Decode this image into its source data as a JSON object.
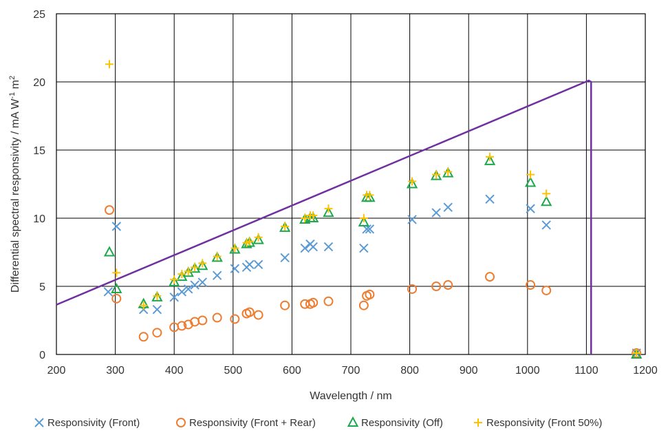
{
  "chart_data": {
    "type": "scatter",
    "xlabel": "Wavelength / nm",
    "ylabel_main": "Differential spectral responsivity / mA W",
    "ylabel_sup1": "-1",
    "ylabel_mid": " m",
    "ylabel_sup2": "2",
    "xlim": [
      200,
      1200
    ],
    "ylim": [
      0,
      25
    ],
    "xticks": [
      200,
      300,
      400,
      500,
      600,
      700,
      800,
      900,
      1000,
      1100,
      1200
    ],
    "yticks": [
      0,
      5,
      10,
      15,
      20,
      25
    ],
    "grid": true,
    "legend_placement": "bottom",
    "series": [
      {
        "name": "Responsivity (Front)",
        "marker": "x",
        "color": "#5b9bd5",
        "x": [
          288,
          302,
          348,
          371,
          400,
          413,
          424,
          435,
          448,
          473,
          503,
          523,
          528,
          543,
          588,
          622,
          631,
          636,
          662,
          722,
          727,
          732,
          804,
          845,
          865,
          936,
          1005,
          1032,
          1185
        ],
        "y": [
          4.6,
          9.4,
          3.3,
          3.3,
          4.2,
          4.6,
          4.8,
          5.1,
          5.3,
          5.8,
          6.3,
          6.4,
          6.6,
          6.6,
          7.1,
          7.8,
          8.1,
          7.9,
          7.9,
          7.8,
          9.2,
          9.2,
          9.9,
          10.4,
          10.8,
          11.4,
          10.7,
          9.5,
          0.1
        ]
      },
      {
        "name": "Responsivity (Front + Rear)",
        "marker": "circle",
        "color": "#ed7d31",
        "x": [
          290,
          302,
          348,
          371,
          400,
          413,
          424,
          435,
          448,
          473,
          503,
          523,
          528,
          543,
          588,
          622,
          631,
          636,
          662,
          722,
          727,
          732,
          804,
          845,
          865,
          936,
          1005,
          1032,
          1185
        ],
        "y": [
          10.6,
          4.1,
          1.3,
          1.6,
          2.0,
          2.1,
          2.2,
          2.4,
          2.5,
          2.7,
          2.6,
          3.0,
          3.1,
          2.9,
          3.6,
          3.7,
          3.7,
          3.8,
          3.9,
          3.6,
          4.3,
          4.4,
          4.8,
          5.0,
          5.1,
          5.7,
          5.1,
          4.7,
          0.1
        ]
      },
      {
        "name": "Responsivity (Off)",
        "marker": "triangle",
        "color": "#1ea84e",
        "x": [
          290,
          302,
          348,
          371,
          400,
          413,
          424,
          435,
          448,
          473,
          503,
          523,
          528,
          543,
          588,
          622,
          631,
          636,
          662,
          722,
          727,
          732,
          804,
          845,
          865,
          936,
          1005,
          1032,
          1185
        ],
        "y": [
          7.5,
          4.8,
          3.7,
          4.2,
          5.3,
          5.7,
          6.0,
          6.3,
          6.5,
          7.1,
          7.7,
          8.1,
          8.2,
          8.4,
          9.3,
          9.9,
          10.0,
          10.0,
          10.4,
          9.7,
          11.5,
          11.5,
          12.5,
          13.1,
          13.3,
          14.2,
          12.6,
          11.2,
          0.0
        ]
      },
      {
        "name": "Responsivity (Front 50%)",
        "marker": "plus",
        "color": "#ffc000",
        "x": [
          290,
          302,
          348,
          371,
          400,
          413,
          424,
          435,
          448,
          473,
          503,
          523,
          528,
          543,
          588,
          622,
          631,
          636,
          662,
          722,
          727,
          732,
          804,
          845,
          865,
          936,
          1005,
          1032,
          1185
        ],
        "y": [
          21.3,
          6.0,
          3.6,
          4.3,
          5.5,
          5.9,
          6.1,
          6.4,
          6.7,
          7.2,
          7.8,
          8.2,
          8.3,
          8.6,
          9.4,
          10.0,
          10.2,
          10.2,
          10.7,
          10.0,
          11.7,
          11.7,
          12.7,
          13.2,
          13.4,
          14.5,
          13.2,
          11.8,
          0.1
        ]
      }
    ],
    "reference_line": {
      "color": "#7030a0",
      "x": [
        200,
        1104,
        1108,
        1108
      ],
      "y": [
        3.65,
        20.1,
        20.0,
        0
      ]
    }
  }
}
